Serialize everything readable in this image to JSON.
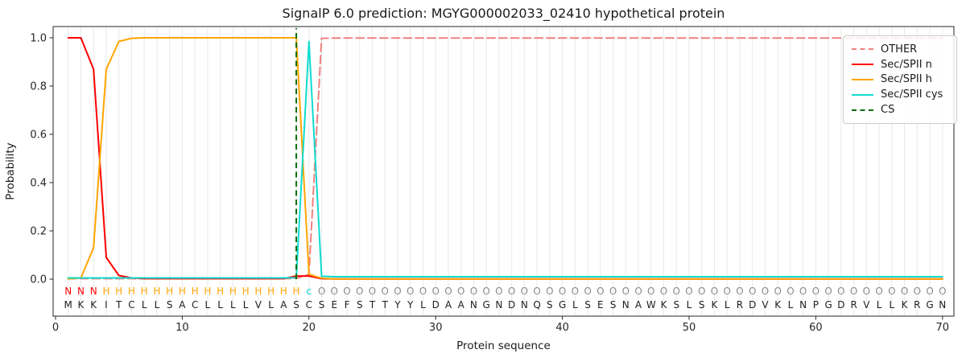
{
  "chart_data": {
    "type": "line",
    "title": "SignalP 6.0 prediction: MGYG000002033_02410 hypothetical protein",
    "xlabel": "Protein sequence",
    "ylabel": "Probability",
    "xticks": [
      0,
      10,
      20,
      30,
      40,
      50,
      60,
      70
    ],
    "yticks": [
      "0.0",
      "0.2",
      "0.4",
      "0.6",
      "0.8",
      "1.0"
    ],
    "xlim": [
      -0.2,
      70.9
    ],
    "ylim": [
      -0.153,
      1.047
    ],
    "grid": "vertical line at every residue position",
    "legend_position": "upper right",
    "x_unit": "residue position 1-70",
    "sequence": "MKKITCLLSACLLLLVLASCSEFSTTYYLDAANGNDNQSGLSESNAWKSLSKLRDVKLNPGDRVLLKRGN",
    "residue_classes": "NNNHHHHHHHHHHHHHHHHcOOOOOOOOOOOOOOOOOOOOOOOOOOOOOOOOOOOOOOOOOOOOOOOOOO",
    "class_colors": {
      "N": "#ff0000",
      "H": "#ffa500",
      "c": "#00d3d6",
      "O": "#8a8a8a"
    },
    "colors": {
      "grid": "#e9e9e9",
      "spine": "#262626",
      "sequence_text": "#1f1f1f"
    },
    "series": [
      {
        "name": "OTHER",
        "color": "#f08080",
        "style": "dashed",
        "values": [
          0.002,
          0.002,
          0.002,
          0.002,
          0.002,
          0.002,
          0.002,
          0.002,
          0.002,
          0.002,
          0.002,
          0.002,
          0.002,
          0.002,
          0.002,
          0.002,
          0.002,
          0.002,
          0.003,
          0.02,
          0.998,
          0.999,
          0.999,
          0.999,
          0.999,
          0.999,
          0.999,
          0.999,
          0.999,
          0.999,
          0.999,
          0.999,
          0.999,
          0.999,
          0.999,
          0.999,
          0.999,
          0.999,
          0.999,
          0.999,
          0.999,
          0.999,
          0.999,
          0.999,
          0.999,
          0.999,
          0.999,
          0.999,
          0.999,
          0.999,
          0.999,
          0.999,
          0.999,
          0.999,
          0.999,
          0.999,
          0.999,
          0.999,
          0.999,
          0.999,
          0.999,
          0.999,
          0.999,
          0.999,
          0.999,
          0.999,
          0.999,
          0.999,
          0.999,
          0.999
        ]
      },
      {
        "name": "Sec/SPII n",
        "color": "#ff0000",
        "style": "solid",
        "values": [
          1.0,
          1.0,
          0.87,
          0.09,
          0.015,
          0.005,
          0.002,
          0.002,
          0.002,
          0.002,
          0.002,
          0.002,
          0.002,
          0.002,
          0.002,
          0.002,
          0.002,
          0.002,
          0.013,
          0.013,
          0.002,
          0.001,
          0.001,
          0.001,
          0.001,
          0.001,
          0.001,
          0.001,
          0.001,
          0.001,
          0.001,
          0.001,
          0.001,
          0.001,
          0.001,
          0.001,
          0.001,
          0.001,
          0.001,
          0.001,
          0.001,
          0.001,
          0.001,
          0.001,
          0.001,
          0.001,
          0.001,
          0.001,
          0.001,
          0.001,
          0.001,
          0.001,
          0.001,
          0.001,
          0.001,
          0.001,
          0.001,
          0.001,
          0.001,
          0.001,
          0.001,
          0.001,
          0.001,
          0.001,
          0.001,
          0.001,
          0.001,
          0.001,
          0.001,
          0.001
        ]
      },
      {
        "name": "Sec/SPII h",
        "color": "#ffa500",
        "style": "solid",
        "values": [
          0.001,
          0.005,
          0.13,
          0.87,
          0.985,
          0.998,
          1.0,
          1.0,
          1.0,
          1.0,
          1.0,
          1.0,
          1.0,
          1.0,
          1.0,
          1.0,
          1.0,
          1.0,
          1.0,
          0.02,
          0.004,
          0.001,
          0.001,
          0.001,
          0.001,
          0.001,
          0.001,
          0.001,
          0.001,
          0.001,
          0.001,
          0.001,
          0.001,
          0.001,
          0.001,
          0.001,
          0.001,
          0.001,
          0.001,
          0.001,
          0.001,
          0.001,
          0.001,
          0.001,
          0.001,
          0.001,
          0.001,
          0.001,
          0.001,
          0.001,
          0.001,
          0.001,
          0.001,
          0.001,
          0.001,
          0.001,
          0.001,
          0.001,
          0.001,
          0.001,
          0.001,
          0.001,
          0.001,
          0.001,
          0.001,
          0.001,
          0.001,
          0.001,
          0.001,
          0.001
        ]
      },
      {
        "name": "Sec/SPII cys",
        "color": "#0fdbd0",
        "style": "solid",
        "values": [
          0.005,
          0.005,
          0.005,
          0.005,
          0.005,
          0.005,
          0.005,
          0.005,
          0.005,
          0.005,
          0.005,
          0.005,
          0.005,
          0.005,
          0.005,
          0.005,
          0.005,
          0.005,
          0.006,
          0.985,
          0.012,
          0.01,
          0.01,
          0.01,
          0.01,
          0.01,
          0.01,
          0.01,
          0.01,
          0.01,
          0.01,
          0.01,
          0.01,
          0.01,
          0.01,
          0.01,
          0.01,
          0.01,
          0.01,
          0.01,
          0.01,
          0.01,
          0.01,
          0.01,
          0.01,
          0.01,
          0.01,
          0.01,
          0.01,
          0.01,
          0.01,
          0.01,
          0.01,
          0.01,
          0.01,
          0.01,
          0.01,
          0.01,
          0.01,
          0.01,
          0.01,
          0.01,
          0.01,
          0.01,
          0.01,
          0.01,
          0.01,
          0.01,
          0.01,
          0.01
        ]
      },
      {
        "name": "CS",
        "color": "#0b6e0b",
        "style": "dashed",
        "type": "vline",
        "x": 19
      }
    ]
  }
}
